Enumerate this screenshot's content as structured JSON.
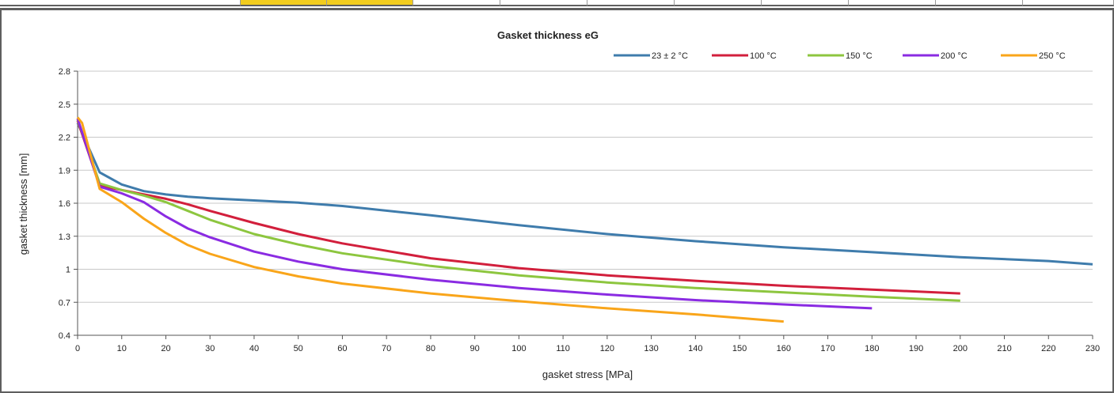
{
  "chart_data": {
    "type": "line",
    "title": "Gasket thickness eG",
    "xlabel": "gasket stress [MPa]",
    "ylabel": "gasket thickness [mm]",
    "xlim": [
      0,
      230
    ],
    "ylim": [
      0.4,
      2.8
    ],
    "x_ticks": [
      0,
      10,
      20,
      30,
      40,
      50,
      60,
      70,
      80,
      90,
      100,
      110,
      120,
      130,
      140,
      150,
      160,
      170,
      180,
      190,
      200,
      210,
      220,
      230
    ],
    "y_ticks": [
      "0.4",
      "0.7",
      "1",
      "1.3",
      "1.6",
      "1.9",
      "2.2",
      "2.5",
      "2.8"
    ],
    "grid": "horizontal",
    "legend_position": "top-right",
    "series": [
      {
        "name": "23 ± 2 °C",
        "color": "#3f7cac",
        "x": [
          0,
          5,
          10,
          15,
          20,
          25,
          30,
          40,
          50,
          60,
          80,
          100,
          120,
          140,
          160,
          180,
          200,
          220,
          230
        ],
        "y": [
          2.33,
          1.88,
          1.77,
          1.71,
          1.68,
          1.66,
          1.645,
          1.625,
          1.605,
          1.575,
          1.49,
          1.4,
          1.32,
          1.255,
          1.2,
          1.155,
          1.11,
          1.075,
          1.045
        ]
      },
      {
        "name": "100 °C",
        "color": "#d21f3c",
        "x": [
          0,
          5,
          10,
          15,
          20,
          25,
          30,
          40,
          50,
          60,
          80,
          100,
          120,
          140,
          160,
          180,
          200
        ],
        "y": [
          2.35,
          1.76,
          1.72,
          1.68,
          1.64,
          1.59,
          1.53,
          1.42,
          1.32,
          1.235,
          1.1,
          1.01,
          0.945,
          0.895,
          0.85,
          0.815,
          0.78
        ]
      },
      {
        "name": "150 °C",
        "color": "#8dc63f",
        "x": [
          0,
          5,
          10,
          15,
          20,
          25,
          30,
          40,
          50,
          60,
          80,
          100,
          120,
          140,
          160,
          180,
          200
        ],
        "y": [
          2.36,
          1.78,
          1.72,
          1.67,
          1.61,
          1.53,
          1.45,
          1.32,
          1.225,
          1.145,
          1.03,
          0.945,
          0.88,
          0.83,
          0.79,
          0.75,
          0.715
        ]
      },
      {
        "name": "200 °C",
        "color": "#8a2be2",
        "x": [
          0,
          5,
          10,
          15,
          20,
          25,
          30,
          40,
          50,
          60,
          80,
          100,
          120,
          140,
          160,
          180
        ],
        "y": [
          2.37,
          1.75,
          1.69,
          1.61,
          1.48,
          1.37,
          1.29,
          1.16,
          1.07,
          1.0,
          0.905,
          0.83,
          0.77,
          0.72,
          0.68,
          0.645
        ]
      },
      {
        "name": "250 °C",
        "color": "#f9a51a",
        "x": [
          0,
          1,
          5,
          10,
          15,
          20,
          25,
          30,
          40,
          50,
          60,
          80,
          100,
          120,
          140,
          160
        ],
        "y": [
          2.38,
          2.33,
          1.73,
          1.61,
          1.46,
          1.33,
          1.22,
          1.14,
          1.02,
          0.935,
          0.87,
          0.78,
          0.71,
          0.645,
          0.59,
          0.525
        ]
      }
    ]
  }
}
